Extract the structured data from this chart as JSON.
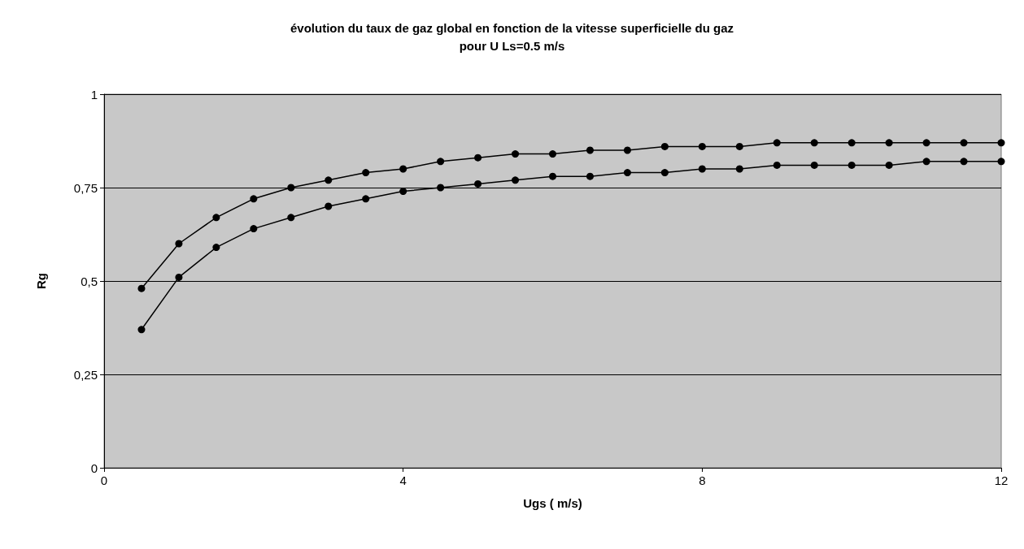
{
  "chart_data": {
    "type": "line",
    "title": "évolution du taux de gaz global en fonction de la vitesse superficielle du gaz\npour U Ls=0.5 m/s",
    "xlabel": "Ugs ( m/s)",
    "ylabel": "Rg",
    "x": [
      0.5,
      1,
      1.5,
      2,
      2.5,
      3,
      3.5,
      4,
      4.5,
      5,
      5.5,
      6,
      6.5,
      7,
      7.5,
      8,
      8.5,
      9,
      9.5,
      10,
      10.5,
      11,
      11.5,
      12
    ],
    "series": [
      {
        "color": "#000000",
        "values": [
          0.48,
          0.6,
          0.67,
          0.72,
          0.75,
          0.77,
          0.79,
          0.8,
          0.82,
          0.83,
          0.84,
          0.84,
          0.85,
          0.85,
          0.86,
          0.86,
          0.86,
          0.87,
          0.87,
          0.87,
          0.87,
          0.87,
          0.87,
          0.87
        ]
      },
      {
        "color": "#000000",
        "values": [
          0.37,
          0.51,
          0.59,
          0.64,
          0.67,
          0.7,
          0.72,
          0.74,
          0.75,
          0.76,
          0.77,
          0.78,
          0.78,
          0.79,
          0.79,
          0.8,
          0.8,
          0.81,
          0.81,
          0.81,
          0.81,
          0.82,
          0.82,
          0.82
        ]
      }
    ],
    "xlim": [
      0,
      12
    ],
    "xticks": [
      0,
      4,
      8,
      12
    ],
    "ylim": [
      0,
      1
    ],
    "yticks": [
      0,
      {
        "value": 0.25,
        "label": "0,25"
      },
      {
        "value": 0.5,
        "label": "0,5"
      },
      {
        "value": 0.75,
        "label": "0,75"
      },
      1
    ],
    "grid": "y",
    "marker": "circle",
    "line_style": "solid"
  }
}
